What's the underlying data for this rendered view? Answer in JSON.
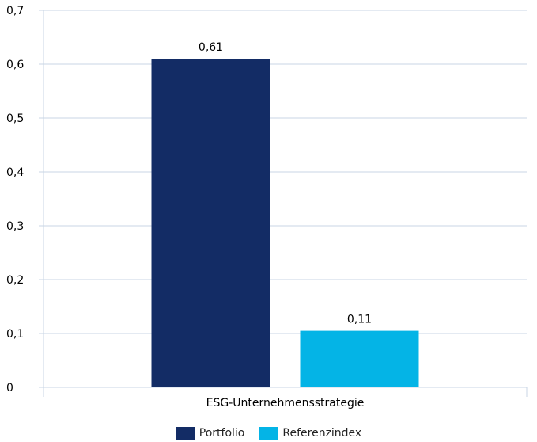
{
  "chart_data": {
    "type": "bar",
    "categories": [
      "ESG-Unternehmensstrategie"
    ],
    "series": [
      {
        "name": "Portfolio",
        "values": [
          0.61
        ],
        "label": "0,61",
        "color": "#132C65"
      },
      {
        "name": "Referenzindex",
        "values": [
          0.105
        ],
        "label": "0,11",
        "color": "#04B4E6"
      }
    ],
    "ylim": [
      0,
      0.7
    ],
    "yticks": [
      0,
      0.1,
      0.2,
      0.3,
      0.4,
      0.5,
      0.6,
      0.7
    ],
    "ytick_labels": [
      "0",
      "0,1",
      "0,2",
      "0,3",
      "0,4",
      "0,5",
      "0,6",
      "0,7"
    ],
    "grid": true,
    "legend_position": "bottom",
    "gridline_color": "#C9D6E4"
  }
}
